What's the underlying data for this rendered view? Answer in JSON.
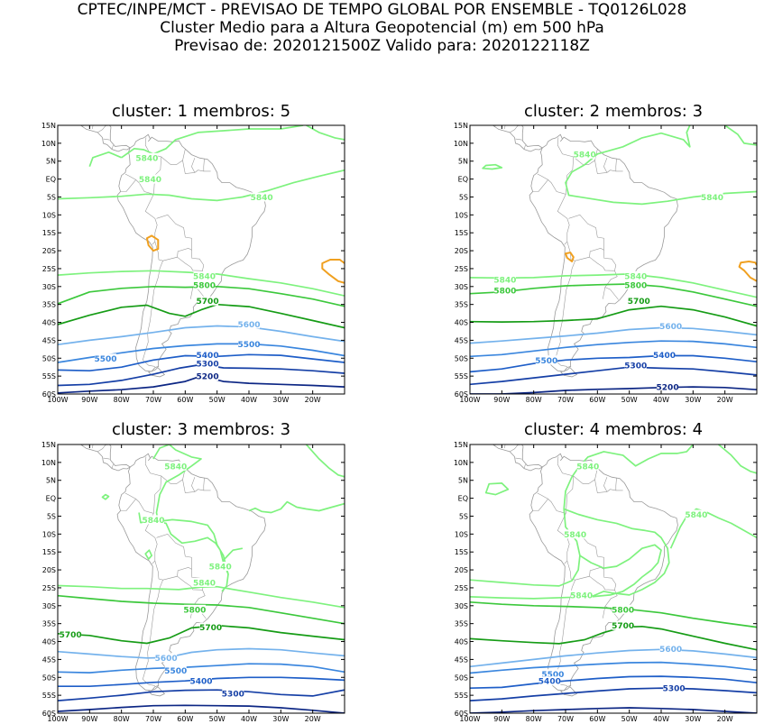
{
  "header": {
    "line1": "CPTEC/INPE/MCT - PREVISAO DE TEMPO GLOBAL POR ENSEMBLE - TQ0126L028",
    "line2": "Cluster Medio para a Altura Geopotencial (m) em 500 hPa",
    "line3": "Previsao de: 2020121500Z    Valido para: 2020122118Z"
  },
  "axes": {
    "lat_labels": [
      "15N",
      "10N",
      "5N",
      "EQ",
      "5S",
      "10S",
      "15S",
      "20S",
      "25S",
      "30S",
      "35S",
      "40S",
      "45S",
      "50S",
      "55S",
      "60S"
    ],
    "lon_labels": [
      "100W",
      "90W",
      "80W",
      "70W",
      "60W",
      "50W",
      "40W",
      "30W",
      "20W"
    ]
  },
  "colors": {
    "c5840": "#7ef27e",
    "c5800": "#3cc83c",
    "c5700": "#169c16",
    "c5600": "#74b2ec",
    "c5500": "#3a86de",
    "c5400": "#1e5ec8",
    "c5300": "#153fa6",
    "c5200": "#0c2684",
    "c5880": "#f0a020",
    "coast": "#9a9a9a"
  },
  "panels": [
    {
      "title": "cluster: 1   membros: 5",
      "contours": [
        {
          "value": 5840,
          "label": "5840",
          "label_pts": [
            [
              -72,
              6
            ],
            [
              -71,
              0
            ],
            [
              -36,
              -5
            ],
            [
              -54,
              -27
            ]
          ]
        },
        {
          "value": 5800,
          "label": "5800",
          "label_pts": [
            [
              -54,
              -29.5
            ]
          ]
        },
        {
          "value": 5700,
          "label": "5700",
          "label_pts": [
            [
              -53,
              -34
            ]
          ]
        },
        {
          "value": 5600,
          "label": "5600",
          "label_pts": [
            [
              -40,
              -40.5
            ]
          ]
        },
        {
          "value": 5500,
          "label": "5500",
          "label_pts": [
            [
              -85,
              -50
            ],
            [
              -40,
              -46
            ]
          ]
        },
        {
          "value": 5400,
          "label": "5400",
          "label_pts": [
            [
              -53,
              -49
            ]
          ]
        },
        {
          "value": 5300,
          "label": "5300",
          "label_pts": [
            [
              -53,
              -51.5
            ]
          ]
        },
        {
          "value": 5200,
          "label": "5200",
          "label_pts": [
            [
              -53,
              -55
            ]
          ]
        }
      ]
    },
    {
      "title": "cluster: 2   membros: 3",
      "contours": [
        {
          "value": 5840,
          "label": "5840",
          "label_pts": [
            [
              -64,
              7
            ],
            [
              -24,
              -5
            ],
            [
              -89,
              -28
            ],
            [
              -48,
              -27
            ]
          ]
        },
        {
          "value": 5800,
          "label": "5800",
          "label_pts": [
            [
              -89,
              -31
            ],
            [
              -48,
              -29.5
            ]
          ]
        },
        {
          "value": 5700,
          "label": "5700",
          "label_pts": [
            [
              -47,
              -34
            ]
          ]
        },
        {
          "value": 5600,
          "label": "5600",
          "label_pts": [
            [
              -37,
              -41
            ]
          ]
        },
        {
          "value": 5500,
          "label": "5500",
          "label_pts": [
            [
              -76,
              -50.5
            ]
          ]
        },
        {
          "value": 5400,
          "label": "5400",
          "label_pts": [
            [
              -39,
              -49
            ]
          ]
        },
        {
          "value": 5300,
          "label": "5300",
          "label_pts": [
            [
              -48,
              -52
            ]
          ]
        },
        {
          "value": 5200,
          "label": "5200",
          "label_pts": [
            [
              -38,
              -58
            ]
          ]
        }
      ]
    },
    {
      "title": "cluster: 3   membros: 3",
      "contours": [
        {
          "value": 5840,
          "label": "5840",
          "label_pts": [
            [
              -63,
              9
            ],
            [
              -70,
              -6
            ],
            [
              -49,
              -19
            ],
            [
              -54,
              -23.5
            ]
          ]
        },
        {
          "value": 5800,
          "label": "5800",
          "label_pts": [
            [
              -57,
              -31
            ]
          ]
        },
        {
          "value": 5700,
          "label": "5700",
          "label_pts": [
            [
              -96,
              -38
            ],
            [
              -52,
              -36
            ]
          ]
        },
        {
          "value": 5600,
          "label": "5600",
          "label_pts": [
            [
              -66,
              -44.5
            ]
          ]
        },
        {
          "value": 5500,
          "label": "5500",
          "label_pts": [
            [
              -63,
              -48
            ]
          ]
        },
        {
          "value": 5400,
          "label": "5400",
          "label_pts": [
            [
              -55,
              -51
            ]
          ]
        },
        {
          "value": 5300,
          "label": "5300",
          "label_pts": [
            [
              -45,
              -54.5
            ]
          ]
        }
      ]
    },
    {
      "title": "cluster: 4   membros: 4",
      "contours": [
        {
          "value": 5840,
          "label": "5840",
          "label_pts": [
            [
              -63,
              9
            ],
            [
              -67,
              -10
            ],
            [
              -29,
              -4.5
            ],
            [
              -65,
              -27
            ]
          ]
        },
        {
          "value": 5800,
          "label": "5800",
          "label_pts": [
            [
              -52,
              -31
            ]
          ]
        },
        {
          "value": 5700,
          "label": "5700",
          "label_pts": [
            [
              -52,
              -35.5
            ]
          ]
        },
        {
          "value": 5600,
          "label": "5600",
          "label_pts": [
            [
              -37,
              -42
            ]
          ]
        },
        {
          "value": 5500,
          "label": "5500",
          "label_pts": [
            [
              -74,
              -49
            ]
          ]
        },
        {
          "value": 5400,
          "label": "5400",
          "label_pts": [
            [
              -75,
              -51
            ]
          ]
        },
        {
          "value": 5300,
          "label": "5300",
          "label_pts": [
            [
              -36,
              -53
            ]
          ]
        }
      ]
    }
  ]
}
